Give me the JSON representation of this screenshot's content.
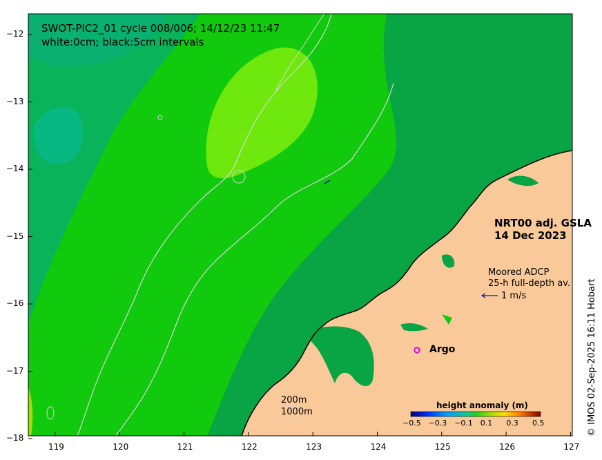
{
  "header": {
    "title_line1": "SWOT-PIC2_01 cycle 008/006; 14/12/23 11:47",
    "title_line2": "white:0cm; black:5cm intervals"
  },
  "product": {
    "name": "NRT00 adj. GSLA",
    "date": "14 Dec 2023"
  },
  "adcp": {
    "line1": "Moored ADCP",
    "line2": "25-h full-depth av.",
    "scale": "1 m/s"
  },
  "argo": {
    "marker": "o",
    "label": "Argo"
  },
  "depth_legend": {
    "contour1": "200m",
    "contour2": "1000m"
  },
  "colorbar": {
    "title": "height anomaly (m)",
    "ticks": [
      "−0.5",
      "−0.3",
      "−0.1",
      "0.1",
      "0.3",
      "0.5"
    ]
  },
  "axes": {
    "lat_ticks": [
      "−12",
      "−13",
      "−14",
      "−15",
      "−16",
      "−17",
      "−18"
    ],
    "lon_ticks": [
      "119",
      "120",
      "121",
      "122",
      "123",
      "124",
      "125",
      "126",
      "127"
    ]
  },
  "credit": "© IMOS 02-Sep-2025 16:11 Hobart",
  "colors": {
    "land": "#f9c99a",
    "ocean_base": "#11c90d",
    "ocean_low": "#09a544",
    "ocean_lower": "#08b471",
    "ocean_high": "#6ee80d",
    "contour_white": "#d8d8d8",
    "argo": "#e000e0",
    "arrow": "#1010c0"
  }
}
